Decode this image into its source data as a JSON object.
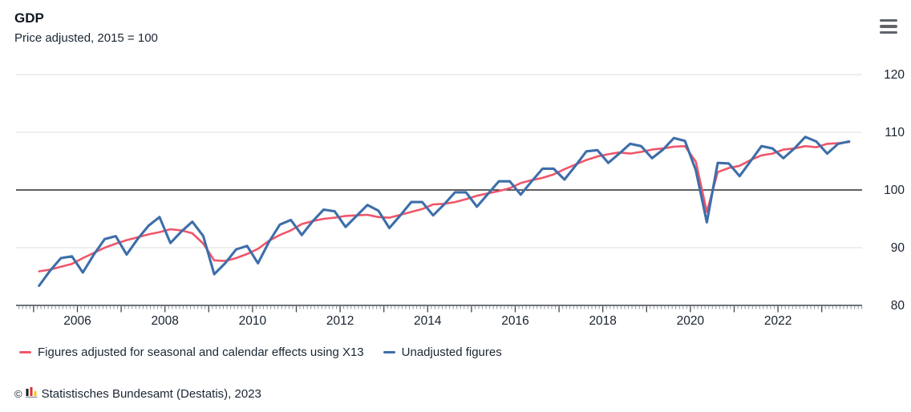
{
  "header": {
    "title": "GDP",
    "subtitle": "Price adjusted, 2015 = 100"
  },
  "menu": {
    "icon": "hamburger-icon",
    "color": "#5f6469"
  },
  "chart_data": {
    "type": "line",
    "title": "GDP",
    "subtitle": "Price adjusted, 2015 = 100",
    "frequency": "quarterly",
    "x_start": 2005.125,
    "x_step": 0.25,
    "x_tick_labels": [
      "2006",
      "2008",
      "2010",
      "2012",
      "2014",
      "2016",
      "2018",
      "2020",
      "2022"
    ],
    "y_ticks": [
      80,
      90,
      100,
      110,
      120
    ],
    "ylim": [
      80,
      120
    ],
    "baseline_value": 100,
    "grid": "horizontal-light, black line at 100",
    "legend_position": "bottom-left",
    "series": [
      {
        "name": "Figures adjusted for seasonal and calendar effects using X13",
        "color": "#f0566a",
        "values": [
          85.9,
          86.2,
          86.7,
          87.2,
          88.2,
          89.1,
          90.0,
          90.7,
          91.3,
          91.8,
          92.3,
          92.7,
          93.2,
          93.0,
          92.5,
          90.7,
          87.8,
          87.7,
          88.2,
          88.9,
          89.8,
          91.2,
          92.2,
          93.0,
          94.1,
          94.6,
          95.0,
          95.2,
          95.5,
          95.6,
          95.7,
          95.3,
          95.2,
          95.7,
          96.2,
          96.7,
          97.5,
          97.6,
          97.9,
          98.4,
          99.0,
          99.4,
          99.8,
          100.3,
          101.2,
          101.7,
          102.1,
          102.7,
          103.6,
          104.4,
          105.2,
          105.8,
          106.2,
          106.5,
          106.3,
          106.6,
          107.0,
          107.2,
          107.5,
          107.6,
          104.9,
          96.2,
          103.1,
          103.8,
          104.2,
          105.2,
          106.0,
          106.3,
          107.0,
          107.2,
          107.6,
          107.4,
          108.0,
          108.1,
          108.3
        ]
      },
      {
        "name": "Unadjusted figures",
        "color": "#3d6ea9",
        "values": [
          83.4,
          86.0,
          88.2,
          88.5,
          85.7,
          88.8,
          91.5,
          92.0,
          88.8,
          91.5,
          93.8,
          95.3,
          90.8,
          92.8,
          94.5,
          92.0,
          85.4,
          87.3,
          89.7,
          90.3,
          87.3,
          91.0,
          94.0,
          94.8,
          92.2,
          94.6,
          96.6,
          96.3,
          93.6,
          95.5,
          97.4,
          96.4,
          93.4,
          95.6,
          97.9,
          97.9,
          95.6,
          97.5,
          99.6,
          99.6,
          97.1,
          99.3,
          101.5,
          101.5,
          99.2,
          101.5,
          103.7,
          103.7,
          101.8,
          104.2,
          106.7,
          106.9,
          104.7,
          106.3,
          108.0,
          107.6,
          105.5,
          107.0,
          109.0,
          108.5,
          103.4,
          94.4,
          104.7,
          104.6,
          102.4,
          105.0,
          107.6,
          107.2,
          105.5,
          107.2,
          109.2,
          108.4,
          106.3,
          108.0,
          108.4
        ]
      }
    ]
  },
  "legend": {
    "items": [
      {
        "label": "Figures adjusted for seasonal and calendar effects using X13",
        "color": "#f0566a"
      },
      {
        "label": "Unadjusted figures",
        "color": "#3d6ea9"
      }
    ]
  },
  "footer": {
    "copyright": "©",
    "logo": "destatis-bars-icon",
    "logo_colors": [
      "#1a1a1a",
      "#e03131",
      "#f5c518"
    ],
    "text": "Statistisches Bundesamt (Destatis), 2023"
  }
}
